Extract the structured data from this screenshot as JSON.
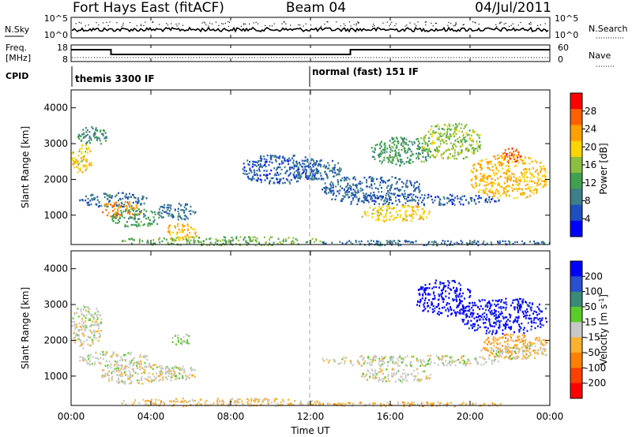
{
  "header": {
    "radar": "Fort Hays East (fitACF)",
    "beam": "Beam 04",
    "date": "04/Jul/2011"
  },
  "strip": {
    "nsky_label": "N.Sky",
    "nsearch_label": "N.Search",
    "nsky_ticks": [
      "10^5",
      "10^0"
    ],
    "nsearch_ticks": [
      "10^5",
      "10^0"
    ],
    "freq_label": [
      "Freq.",
      "[MHz]"
    ],
    "freq_ticks": [
      "18",
      "8"
    ],
    "nave_label": "Nave",
    "nave_ticks": [
      "60",
      "0"
    ],
    "cpid_label": "CPID",
    "cpid_segments": [
      {
        "label": "themis 3300 IF",
        "start_hour": 0,
        "end_hour": 12
      },
      {
        "label": "normal (fast) 151 IF",
        "start_hour": 12,
        "end_hour": 24
      }
    ],
    "freq_steps": [
      {
        "start_hour": 0,
        "end_hour": 2,
        "level": "high"
      },
      {
        "start_hour": 2,
        "end_hour": 14,
        "level": "low"
      },
      {
        "start_hour": 14,
        "end_hour": 24,
        "level": "high"
      }
    ]
  },
  "xaxis": {
    "ticks": [
      "00:00",
      "04:00",
      "08:00",
      "12:00",
      "16:00",
      "20:00",
      "00:00"
    ],
    "label": "Time UT"
  },
  "power_panel": {
    "ylabel": "Slant Range [km]",
    "yticks": [
      "4000",
      "3000",
      "2000",
      "1000"
    ],
    "colorbar_label": "Power [dB]",
    "colorbar_ticks": [
      "28",
      "24",
      "20",
      "16",
      "12",
      "8",
      "4"
    ],
    "colors": [
      "#0000ff",
      "#1f4fbf",
      "#3d7f8a",
      "#40a050",
      "#8cbf3f",
      "#ffd400",
      "#ffa000",
      "#ff6000",
      "#ff0000"
    ]
  },
  "velocity_panel": {
    "ylabel": "Slant Range [km]",
    "yticks": [
      "4000",
      "3000",
      "2000",
      "1000"
    ],
    "colorbar_label": "Velocity [m s",
    "colorbar_label_sup": "-1",
    "colorbar_label_end": "]",
    "colorbar_ticks": [
      "200",
      "100",
      "50",
      "15",
      "-15",
      "-50",
      "-100",
      "-200"
    ],
    "colors": [
      "#0000ff",
      "#2a4fd0",
      "#3a8a78",
      "#5acc2a",
      "#c8c8c8",
      "#ffb030",
      "#ff8000",
      "#ff4000",
      "#ff0000"
    ]
  },
  "chart_data": {
    "type": "heatmap",
    "title": "Fort Hays East (fitACF)",
    "subtitle": "Beam 04",
    "xlabel": "Time UT",
    "ylabel": "Slant Range [km]",
    "x_range_hours": [
      0,
      24
    ],
    "y_range_km": [
      180,
      4500
    ],
    "panels": [
      {
        "name": "Power [dB]",
        "cbar_range": [
          0,
          32
        ],
        "regions": [
          {
            "t": [
              0.0,
              1.0
            ],
            "r": [
              2200,
              3000
            ],
            "v": 20
          },
          {
            "t": [
              0.3,
              1.8
            ],
            "r": [
              3000,
              3500
            ],
            "v": 10
          },
          {
            "t": [
              0.4,
              3.8
            ],
            "r": [
              1250,
              1650
            ],
            "v": 8
          },
          {
            "t": [
              1.5,
              3.5
            ],
            "r": [
              950,
              1400
            ],
            "v": 24
          },
          {
            "t": [
              2.0,
              4.5
            ],
            "r": [
              700,
              1200
            ],
            "v": 12
          },
          {
            "t": [
              4.3,
              6.2
            ],
            "r": [
              900,
              1350
            ],
            "v": 8
          },
          {
            "t": [
              4.7,
              6.3
            ],
            "r": [
              300,
              800
            ],
            "v": 22
          },
          {
            "t": [
              2.5,
              12.5
            ],
            "r": [
              180,
              420
            ],
            "v": 14
          },
          {
            "t": [
              12.0,
              24.0
            ],
            "r": [
              180,
              320
            ],
            "v": 8
          },
          {
            "t": [
              8.5,
              12.5
            ],
            "r": [
              1900,
              2700
            ],
            "v": 6
          },
          {
            "t": [
              11.0,
              13.5
            ],
            "r": [
              2000,
              2600
            ],
            "v": 8
          },
          {
            "t": [
              12.5,
              17.5
            ],
            "r": [
              1500,
              2100
            ],
            "v": 7
          },
          {
            "t": [
              13.0,
              21.5
            ],
            "r": [
              1300,
              1600
            ],
            "v": 6
          },
          {
            "t": [
              14.5,
              18.0
            ],
            "r": [
              850,
              1300
            ],
            "v": 20
          },
          {
            "t": [
              15.0,
              18.0
            ],
            "r": [
              2400,
              3200
            ],
            "v": 12
          },
          {
            "t": [
              17.5,
              20.5
            ],
            "r": [
              2600,
              3600
            ],
            "v": 16
          },
          {
            "t": [
              20.0,
              23.8
            ],
            "r": [
              1500,
              2700
            ],
            "v": 22
          },
          {
            "t": [
              21.5,
              22.5
            ],
            "r": [
              2500,
              2900
            ],
            "v": 28
          }
        ]
      },
      {
        "name": "Velocity [m s-1]",
        "cbar_range": [
          -250,
          250
        ],
        "regions": [
          {
            "t": [
              0.0,
              1.5
            ],
            "r": [
              1800,
              3000
            ],
            "v": 0
          },
          {
            "t": [
              0.4,
              3.8
            ],
            "r": [
              1300,
              1700
            ],
            "v": 0
          },
          {
            "t": [
              1.5,
              5.0
            ],
            "r": [
              800,
              1400
            ],
            "v": -5
          },
          {
            "t": [
              4.3,
              6.3
            ],
            "r": [
              900,
              1300
            ],
            "v": -2
          },
          {
            "t": [
              5.0,
              6.0
            ],
            "r": [
              1900,
              2200
            ],
            "v": 40
          },
          {
            "t": [
              2.5,
              12.5
            ],
            "r": [
              180,
              400
            ],
            "v": -40
          },
          {
            "t": [
              12.0,
              22.0
            ],
            "r": [
              180,
              300
            ],
            "v": -60
          },
          {
            "t": [
              12.5,
              21.5
            ],
            "r": [
              1300,
              1600
            ],
            "v": 0
          },
          {
            "t": [
              14.5,
              18.0
            ],
            "r": [
              850,
              1250
            ],
            "v": -5
          },
          {
            "t": [
              17.3,
              20.0
            ],
            "r": [
              2700,
              3700
            ],
            "v": 230
          },
          {
            "t": [
              19.5,
              23.8
            ],
            "r": [
              2200,
              3200
            ],
            "v": 220
          },
          {
            "t": [
              20.5,
              23.8
            ],
            "r": [
              1500,
              2200
            ],
            "v": -60
          },
          {
            "t": [
              21.0,
              23.8
            ],
            "r": [
              1500,
              1900
            ],
            "v": 0
          }
        ]
      }
    ]
  }
}
